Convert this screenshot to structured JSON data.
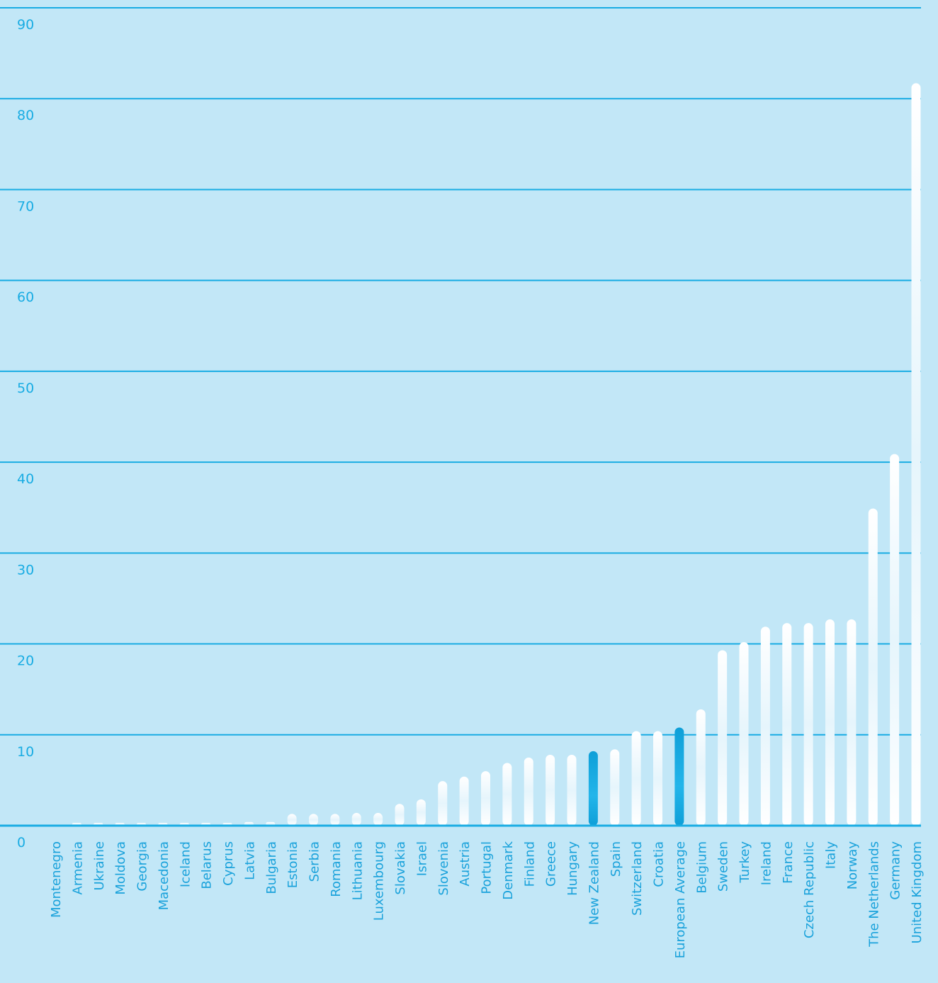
{
  "background_color": "#c2e7f7",
  "gridline_color": "#19ace3",
  "tick_label_color": "#19ace3",
  "category_label_color": "#1aa2db",
  "bar_color_default": "#ffffff",
  "bar_color_highlight": "#10a8df",
  "chart_data": {
    "type": "bar",
    "title": "",
    "xlabel": "",
    "ylabel": "",
    "ylim": [
      0,
      90
    ],
    "yticks": [
      0,
      10,
      20,
      30,
      40,
      50,
      60,
      70,
      80,
      90
    ],
    "grid": true,
    "legend": "none",
    "categories": [
      "Montenegro",
      "Armenia",
      "Ukraine",
      "Moldova",
      "Georgia",
      "Macedonia",
      "Iceland",
      "Belarus",
      "Cyprus",
      "Latvia",
      "Bulgaria",
      "Estonia",
      "Serbia",
      "Romania",
      "Lithuania",
      "Luxembourg",
      "Slovakia",
      "Israel",
      "Slovenia",
      "Austria",
      "Portugal",
      "Denmark",
      "Finland",
      "Greece",
      "Hungary",
      "New Zealand",
      "Spain",
      "Switzerland",
      "Croatia",
      "European Average",
      "Belgium",
      "Sweden",
      "Turkey",
      "Ireland",
      "France",
      "Czech Republic",
      "Italy",
      "Norway",
      "The Netherlands",
      "Germany",
      "United Kingdom"
    ],
    "values": [
      0,
      0.1,
      0.1,
      0.1,
      0.2,
      0.3,
      0.3,
      0.3,
      0.3,
      0.4,
      0.4,
      1.3,
      1.3,
      1.3,
      1.4,
      1.4,
      2.4,
      2.9,
      4.9,
      5.4,
      6.0,
      6.9,
      7.5,
      7.8,
      7.8,
      8.2,
      8.4,
      10.4,
      10.4,
      10.8,
      12.8,
      19.3,
      20.2,
      21.9,
      22.3,
      22.3,
      22.7,
      22.7,
      34.9,
      40.9,
      81.7
    ],
    "highlight": [
      "New Zealand",
      "European Average"
    ]
  }
}
